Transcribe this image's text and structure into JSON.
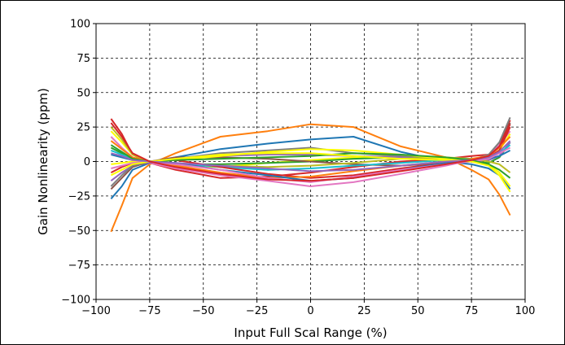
{
  "chart_data": {
    "type": "line",
    "xlabel": "Input Full Scal Range (%)",
    "ylabel": "Gain Nonlinearity (ppm)",
    "xlim": [
      -100,
      100
    ],
    "ylim": [
      -100,
      100
    ],
    "xticks": [
      -100,
      -75,
      -50,
      -25,
      0,
      25,
      50,
      75,
      100
    ],
    "yticks": [
      -100,
      -75,
      -50,
      -25,
      0,
      25,
      50,
      75,
      100
    ],
    "xtick_labels": [
      "−100",
      "−75",
      "−50",
      "−25",
      "0",
      "25",
      "50",
      "75",
      "100"
    ],
    "ytick_labels": [
      "−100",
      "−75",
      "−50",
      "−25",
      "0",
      "25",
      "50",
      "75",
      "100"
    ],
    "grid": true,
    "grid_style": "dashed",
    "x": [
      -93,
      -88,
      -83,
      -75,
      -63,
      -42,
      -20,
      0,
      20,
      42,
      63,
      75,
      83,
      88,
      93
    ],
    "series": [
      {
        "color": "#ff7f0e",
        "values": [
          -51,
          -32,
          -12,
          -2,
          6,
          18,
          22,
          27,
          25,
          11,
          3,
          -6,
          -13,
          -24,
          -39
        ]
      },
      {
        "color": "#1f77b4",
        "values": [
          -27,
          -18,
          -6,
          -1,
          3,
          9,
          13,
          16,
          18,
          7,
          0,
          -2,
          -5,
          -10,
          -20
        ]
      },
      {
        "color": "#d62728",
        "values": [
          31,
          20,
          5,
          -1,
          -6,
          -12,
          -11,
          -8,
          -4,
          0,
          2,
          4,
          5,
          12,
          30
        ]
      },
      {
        "color": "#e377c2",
        "values": [
          18,
          10,
          3,
          -1,
          -5,
          -10,
          -14,
          -18,
          -15,
          -9,
          -3,
          1,
          5,
          12,
          22
        ]
      },
      {
        "color": "#ffff00",
        "values": [
          22,
          14,
          5,
          0,
          -3,
          -4,
          -1,
          1,
          3,
          4,
          3,
          1,
          2,
          8,
          20
        ]
      },
      {
        "color": "#2ca02c",
        "values": [
          10,
          6,
          2,
          0,
          -2,
          -2,
          -1,
          0,
          2,
          3,
          2,
          0,
          -1,
          3,
          14
        ]
      },
      {
        "color": "#9467bd",
        "values": [
          -14,
          -8,
          -3,
          -1,
          2,
          4,
          5,
          5,
          4,
          3,
          1,
          0,
          1,
          4,
          14
        ]
      },
      {
        "color": "#8c564b",
        "values": [
          -20,
          -12,
          -4,
          0,
          3,
          3,
          2,
          0,
          -2,
          -3,
          -1,
          1,
          4,
          10,
          28
        ]
      },
      {
        "color": "#7f7f7f",
        "values": [
          -18,
          -10,
          -3,
          0,
          2,
          6,
          8,
          10,
          6,
          4,
          2,
          1,
          5,
          14,
          32
        ]
      },
      {
        "color": "#bcbd22",
        "values": [
          25,
          16,
          5,
          0,
          -2,
          -3,
          -4,
          -3,
          -1,
          2,
          3,
          2,
          0,
          -2,
          -8
        ]
      },
      {
        "color": "#17becf",
        "values": [
          8,
          5,
          2,
          0,
          -1,
          -4,
          -6,
          -5,
          -3,
          -1,
          1,
          2,
          3,
          6,
          12
        ]
      },
      {
        "color": "#d62728",
        "values": [
          -8,
          -4,
          -1,
          0,
          1,
          -4,
          -9,
          -12,
          -10,
          -5,
          -1,
          1,
          3,
          8,
          25
        ]
      },
      {
        "color": "#ff7f0e",
        "values": [
          15,
          9,
          3,
          0,
          -3,
          -8,
          -12,
          -11,
          -7,
          -3,
          0,
          2,
          4,
          10,
          18
        ]
      },
      {
        "color": "#1f77b4",
        "values": [
          5,
          3,
          1,
          0,
          -1,
          -6,
          -10,
          -14,
          -12,
          -6,
          -1,
          1,
          2,
          4,
          8
        ]
      },
      {
        "color": "#ffff00",
        "values": [
          -2,
          -1,
          0,
          0,
          1,
          4,
          7,
          9,
          8,
          5,
          2,
          0,
          -2,
          -8,
          -18
        ]
      },
      {
        "color": "#e377c2",
        "values": [
          -5,
          -3,
          -1,
          0,
          -2,
          -6,
          -12,
          -15,
          -11,
          -6,
          -2,
          0,
          2,
          6,
          10
        ]
      },
      {
        "color": "#2ca02c",
        "values": [
          12,
          7,
          2,
          0,
          1,
          2,
          3,
          4,
          6,
          5,
          3,
          1,
          -2,
          -6,
          -12
        ]
      },
      {
        "color": "#ffff00",
        "values": [
          -10,
          -6,
          -2,
          0,
          2,
          5,
          6,
          6,
          4,
          2,
          1,
          0,
          -3,
          -10,
          -22
        ]
      },
      {
        "color": "#9467bd",
        "values": [
          6,
          4,
          1,
          0,
          -1,
          -3,
          -5,
          -7,
          -6,
          -3,
          0,
          1,
          3,
          7,
          15
        ]
      },
      {
        "color": "#d62728",
        "values": [
          28,
          18,
          6,
          0,
          -4,
          -9,
          -13,
          -14,
          -12,
          -7,
          -2,
          1,
          4,
          11,
          27
        ]
      }
    ]
  }
}
